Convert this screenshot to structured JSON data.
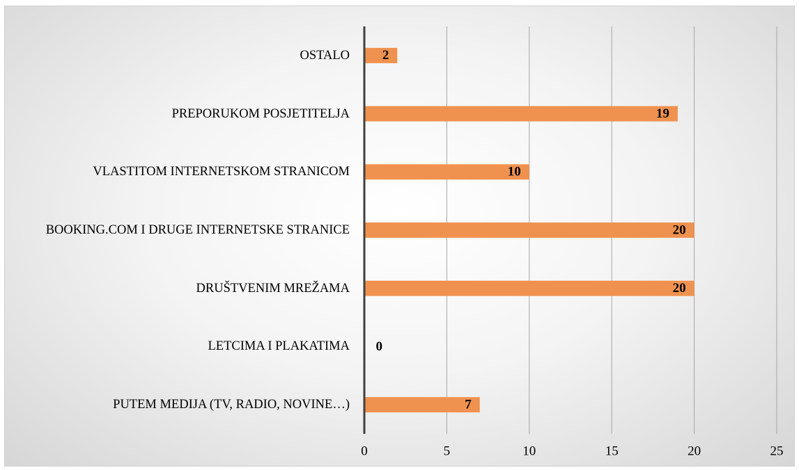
{
  "chart_data": {
    "type": "bar",
    "orientation": "horizontal",
    "categories": [
      "OSTALO",
      "PREPORUKOM POSJETITELJA",
      "VLASTITOM INTERNETSKOM STRANICOM",
      "BOOKING.COM I DRUGE INTERNETSKE STRANICE",
      "DRUŠTVENIM MREŽAMA",
      "LETCIMA I PLAKATIMA",
      "PUTEM MEDIJA (TV, RADIO, NOVINE…)"
    ],
    "values": [
      2,
      19,
      10,
      20,
      20,
      0,
      7
    ],
    "color": "#f0924f",
    "xlim": [
      0,
      25
    ],
    "xticks": [
      0,
      5,
      10,
      15,
      20,
      25
    ],
    "grid": true
  }
}
